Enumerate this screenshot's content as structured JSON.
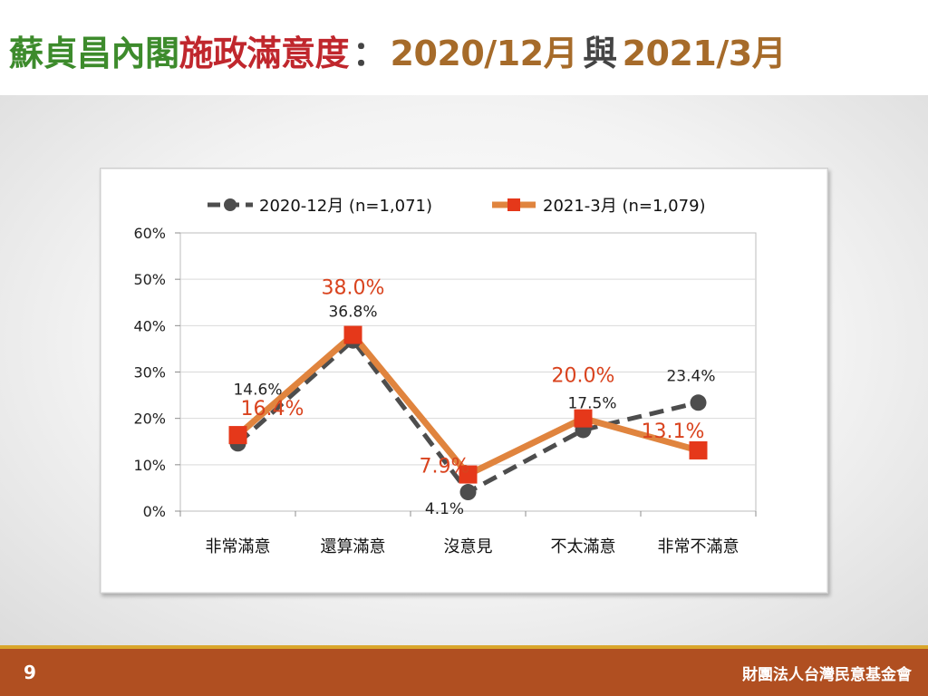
{
  "title": {
    "part1": "蘇貞昌內閣",
    "part2": "施政滿意度",
    "sep": "：",
    "part3": "2020/12月",
    "conj": "與",
    "part4": "2021/3月"
  },
  "colors": {
    "title_green": "#3d8b2c",
    "title_red": "#c0272d",
    "title_brown": "#a66b2a",
    "series_a": "#4d4d4d",
    "series_b": "#e0843e",
    "series_b_marker": "#e5381a",
    "label_b": "#d9431e",
    "footer": "#b04f21",
    "footer_stripe": "#d9a62b"
  },
  "chart_data": {
    "type": "line",
    "categories": [
      "非常滿意",
      "還算滿意",
      "沒意見",
      "不太滿意",
      "非常不滿意"
    ],
    "y_ticks": [
      "0%",
      "10%",
      "20%",
      "30%",
      "40%",
      "50%",
      "60%"
    ],
    "ylim": [
      0,
      60
    ],
    "grid": true,
    "legend_position": "top",
    "series": [
      {
        "name": "2020-12月  (n=1,071)",
        "values": [
          14.6,
          36.8,
          4.1,
          17.5,
          23.4
        ],
        "labels": [
          "14.6%",
          "36.8%",
          "4.1%",
          "17.5%",
          "23.4%"
        ],
        "style": "dashed",
        "marker": "circle"
      },
      {
        "name": "2021-3月  (n=1,079)",
        "values": [
          16.4,
          38.0,
          7.9,
          20.0,
          13.1
        ],
        "labels": [
          "16.4%",
          "38.0%",
          "7.9%",
          "20.0%",
          "13.1%"
        ],
        "style": "solid",
        "marker": "square"
      }
    ]
  },
  "footer": {
    "page_number": "9",
    "organization": "財團法人台灣民意基金會"
  }
}
